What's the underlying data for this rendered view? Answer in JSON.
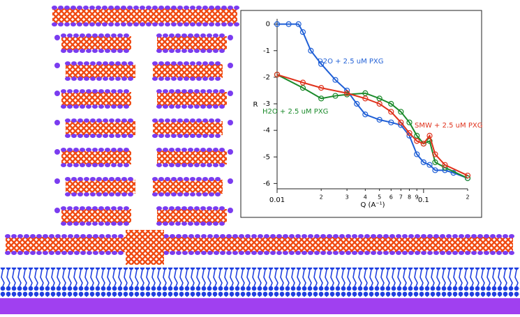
{
  "chart_data": {
    "type": "scatter",
    "log_x": true,
    "xlabel": "Q (A⁻¹)",
    "ylabel": "R",
    "xlim": [
      0.01,
      0.2
    ],
    "ylim": [
      -6.2,
      0.2
    ],
    "xticks": [
      {
        "value": 0.01,
        "label": "0.01"
      },
      {
        "value": 0.02,
        "label": "2"
      },
      {
        "value": 0.03,
        "label": "3"
      },
      {
        "value": 0.04,
        "label": "4"
      },
      {
        "value": 0.05,
        "label": "5"
      },
      {
        "value": 0.06,
        "label": "6"
      },
      {
        "value": 0.07,
        "label": "7"
      },
      {
        "value": 0.08,
        "label": "8"
      },
      {
        "value": 0.09,
        "label": "9"
      },
      0.1,
      {
        "value": 0.2,
        "label": "2"
      }
    ],
    "yticks": [
      0,
      -1,
      -2,
      -3,
      -4,
      -5,
      -6
    ],
    "series": [
      {
        "name": "D2O + 2.5 uM PXG",
        "color": "#1f5fd6",
        "x": [
          0.01,
          0.012,
          0.014,
          0.015,
          0.017,
          0.02,
          0.025,
          0.03,
          0.035,
          0.04,
          0.05,
          0.06,
          0.07,
          0.08,
          0.09,
          0.1,
          0.11,
          0.12,
          0.14,
          0.16,
          0.2
        ],
        "values": [
          0,
          0,
          0,
          -0.3,
          -1,
          -1.5,
          -2.1,
          -2.5,
          -3.0,
          -3.4,
          -3.6,
          -3.7,
          -3.8,
          -4.2,
          -4.9,
          -5.2,
          -5.3,
          -5.5,
          -5.5,
          -5.6,
          -5.8
        ]
      },
      {
        "name": "H2O + 2.5 uM PXG",
        "color": "#1a8a2a",
        "x": [
          0.01,
          0.015,
          0.02,
          0.025,
          0.03,
          0.04,
          0.05,
          0.06,
          0.07,
          0.08,
          0.09,
          0.1,
          0.11,
          0.12,
          0.14,
          0.2
        ],
        "values": [
          -1.9,
          -2.4,
          -2.8,
          -2.7,
          -2.65,
          -2.6,
          -2.8,
          -3.0,
          -3.3,
          -3.7,
          -4.2,
          -4.5,
          -4.4,
          -5.2,
          -5.4,
          -5.8
        ]
      },
      {
        "name": "SMW + 2.5 uM PXG",
        "color": "#e0321c",
        "x": [
          0.01,
          0.015,
          0.02,
          0.03,
          0.04,
          0.05,
          0.06,
          0.07,
          0.08,
          0.09,
          0.1,
          0.11,
          0.12,
          0.14,
          0.2
        ],
        "values": [
          -1.9,
          -2.2,
          -2.4,
          -2.6,
          -2.8,
          -3.0,
          -3.3,
          -3.7,
          -4.1,
          -4.4,
          -4.5,
          -4.2,
          -4.9,
          -5.3,
          -5.7
        ]
      }
    ]
  }
}
